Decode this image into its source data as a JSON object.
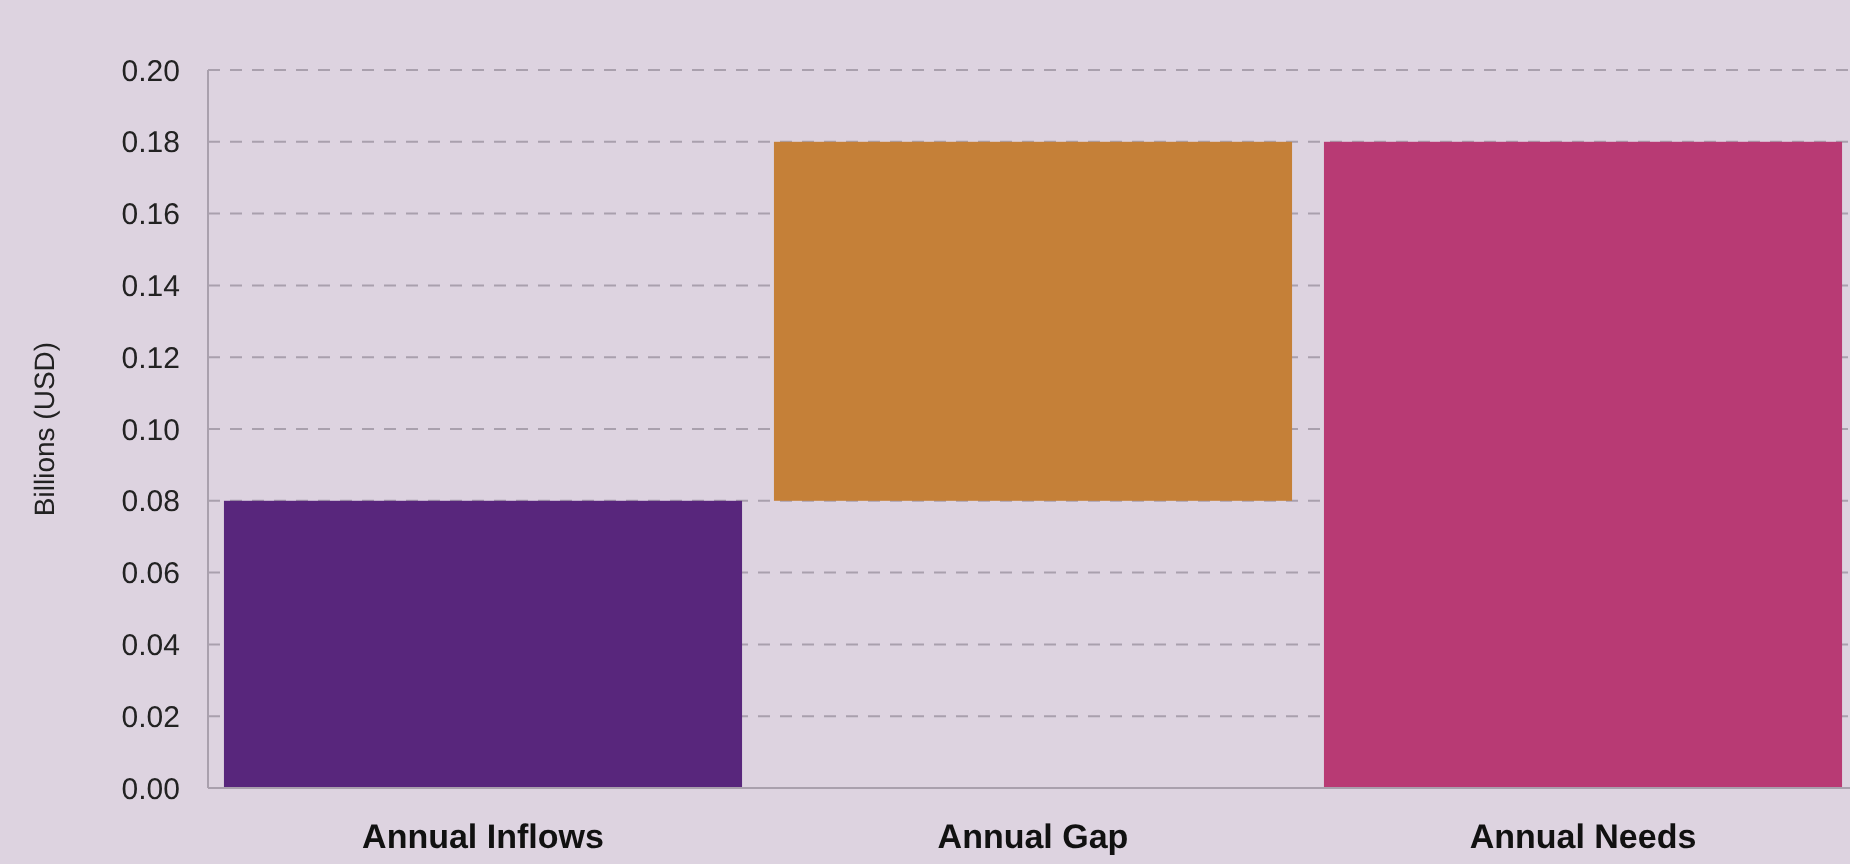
{
  "chart_data": {
    "type": "bar",
    "ylabel": "Billions (USD)",
    "categories": [
      "Annual Inflows",
      "Annual Gap",
      "Annual Needs"
    ],
    "values": [
      0.08,
      0.1,
      0.18
    ],
    "base": [
      0,
      0.08,
      0
    ],
    "colors": [
      "#58267c",
      "#c58038",
      "#b83a74"
    ],
    "ylim": [
      0,
      0.2
    ],
    "yticks": [
      {
        "value": 0,
        "label": "0.00"
      },
      {
        "value": 0.02,
        "label": "0.02"
      },
      {
        "value": 0.04,
        "label": "0.04"
      },
      {
        "value": 0.06,
        "label": "0.06"
      },
      {
        "value": 0.08,
        "label": "0.08"
      },
      {
        "value": 0.1,
        "label": "0.10"
      },
      {
        "value": 0.12,
        "label": "0.12"
      },
      {
        "value": 0.14,
        "label": "0.14"
      },
      {
        "value": 0.16,
        "label": "0.16"
      },
      {
        "value": 0.18,
        "label": "0.18"
      },
      {
        "value": 0.2,
        "label": "0.20"
      }
    ],
    "grid": "y"
  }
}
